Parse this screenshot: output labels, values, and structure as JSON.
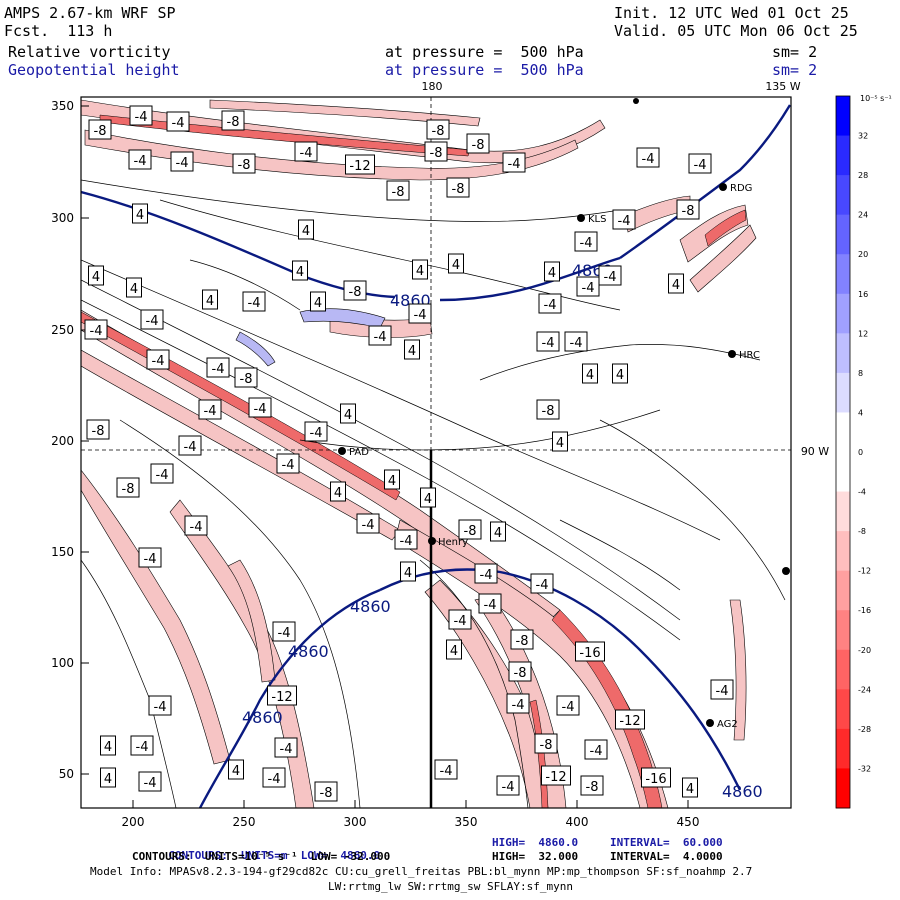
{
  "header": {
    "model": "AMPS 2.67-km WRF SP",
    "fcst": "Fcst.  113 h",
    "init": "Init. 12 UTC Wed 01 Oct 25",
    "valid": "Valid. 05 UTC Mon 06 Oct 25",
    "field1_name": "Relative vorticity",
    "field1_level": "at pressure =  500 hPa",
    "field1_sm": "sm= 2",
    "field2_name": "Geopotential height",
    "field2_level": "at pressure =  500 hPa",
    "field2_sm": "sm= 2"
  },
  "map": {
    "lon_labels": {
      "lon180": "180",
      "lon135": "135 W",
      "lon90": "90 W"
    },
    "x_ticks": [
      "200",
      "250",
      "300",
      "350",
      "400",
      "450"
    ],
    "y_ticks": [
      "350",
      "300",
      "250",
      "200",
      "150",
      "100",
      "50"
    ],
    "stations": [
      {
        "name": "RDG"
      },
      {
        "name": "KLS"
      },
      {
        "name": "HRC"
      },
      {
        "name": "PAD"
      },
      {
        "name": "Henry"
      },
      {
        "name": "AG2"
      }
    ],
    "height_labels": [
      "4860",
      "4860",
      "4860",
      "4860",
      "4860",
      "4860"
    ],
    "vort_labels": [
      "-4",
      "-4",
      "-8",
      "-8",
      "-4",
      "-4",
      "-8",
      "-4",
      "-8",
      "-8",
      "-12",
      "-8",
      "-8",
      "-4",
      "-8",
      "-4",
      "-8",
      "-4",
      "-4",
      "-4",
      "4",
      "4",
      "4",
      "4",
      "4",
      "4",
      "4",
      "4",
      "-4",
      "-4",
      "-4",
      "4",
      "-8",
      "-4",
      "-4",
      "4",
      "-4",
      "4",
      "-4",
      "-4",
      "4",
      "4",
      "-4",
      "-4",
      "-8",
      "-4",
      "-4",
      "4",
      "-4",
      "-8",
      "-8",
      "-4",
      "-4",
      "4",
      "-8",
      "4",
      "4",
      "-4",
      "-4",
      "4",
      "-4",
      "-4",
      "-8",
      "4",
      "-4",
      "4",
      "-16",
      "-8",
      "-4",
      "-4",
      "-12",
      "-8",
      "-4",
      "-4",
      "-4",
      "4",
      "-8",
      "-4",
      "-12",
      "-4",
      "-4",
      "-16",
      "4",
      "-4",
      "-8",
      "-12",
      "4",
      "-4",
      "-4",
      "-4",
      "4",
      "-4",
      "-4",
      "4",
      "-4",
      "-4",
      "-8",
      "4",
      "-4",
      "-4"
    ]
  },
  "colorbar": {
    "unit_label": "10⁻⁵ s⁻¹",
    "labels": [
      "32",
      "28",
      "24",
      "20",
      "16",
      "12",
      "8",
      "4",
      "0",
      "-4",
      "-8",
      "-12",
      "-16",
      "-20",
      "-24",
      "-28",
      "-32"
    ]
  },
  "footer": {
    "line1_a": "CONTOURS:  UNITS=m  LOW=  4860.0",
    "line1_b": "HIGH=  4860.0",
    "line1_c": "INTERVAL=  60.000",
    "line2_a": "CONTOURS:  UNITS=10⁻⁵ s⁻¹  LOW= -32.000",
    "line2_b": "HIGH=  32.000",
    "line2_c": "INTERVAL=  4.0000",
    "model_info": "Model Info: MPASv8.2.3-194-gf29cd82c CU:cu_grell_freitas PBL:bl_mynn MP:mp_thompson SF:sf_noahmp 2.7",
    "model_info2": "LW:rrtmg_lw SW:rrtmg_sw SFLAY:sf_mynn"
  },
  "colors": {
    "height_contour": "#0a1a80",
    "negative_fill": "#f0a8a8",
    "positive_fill": "#a8a8f0"
  }
}
